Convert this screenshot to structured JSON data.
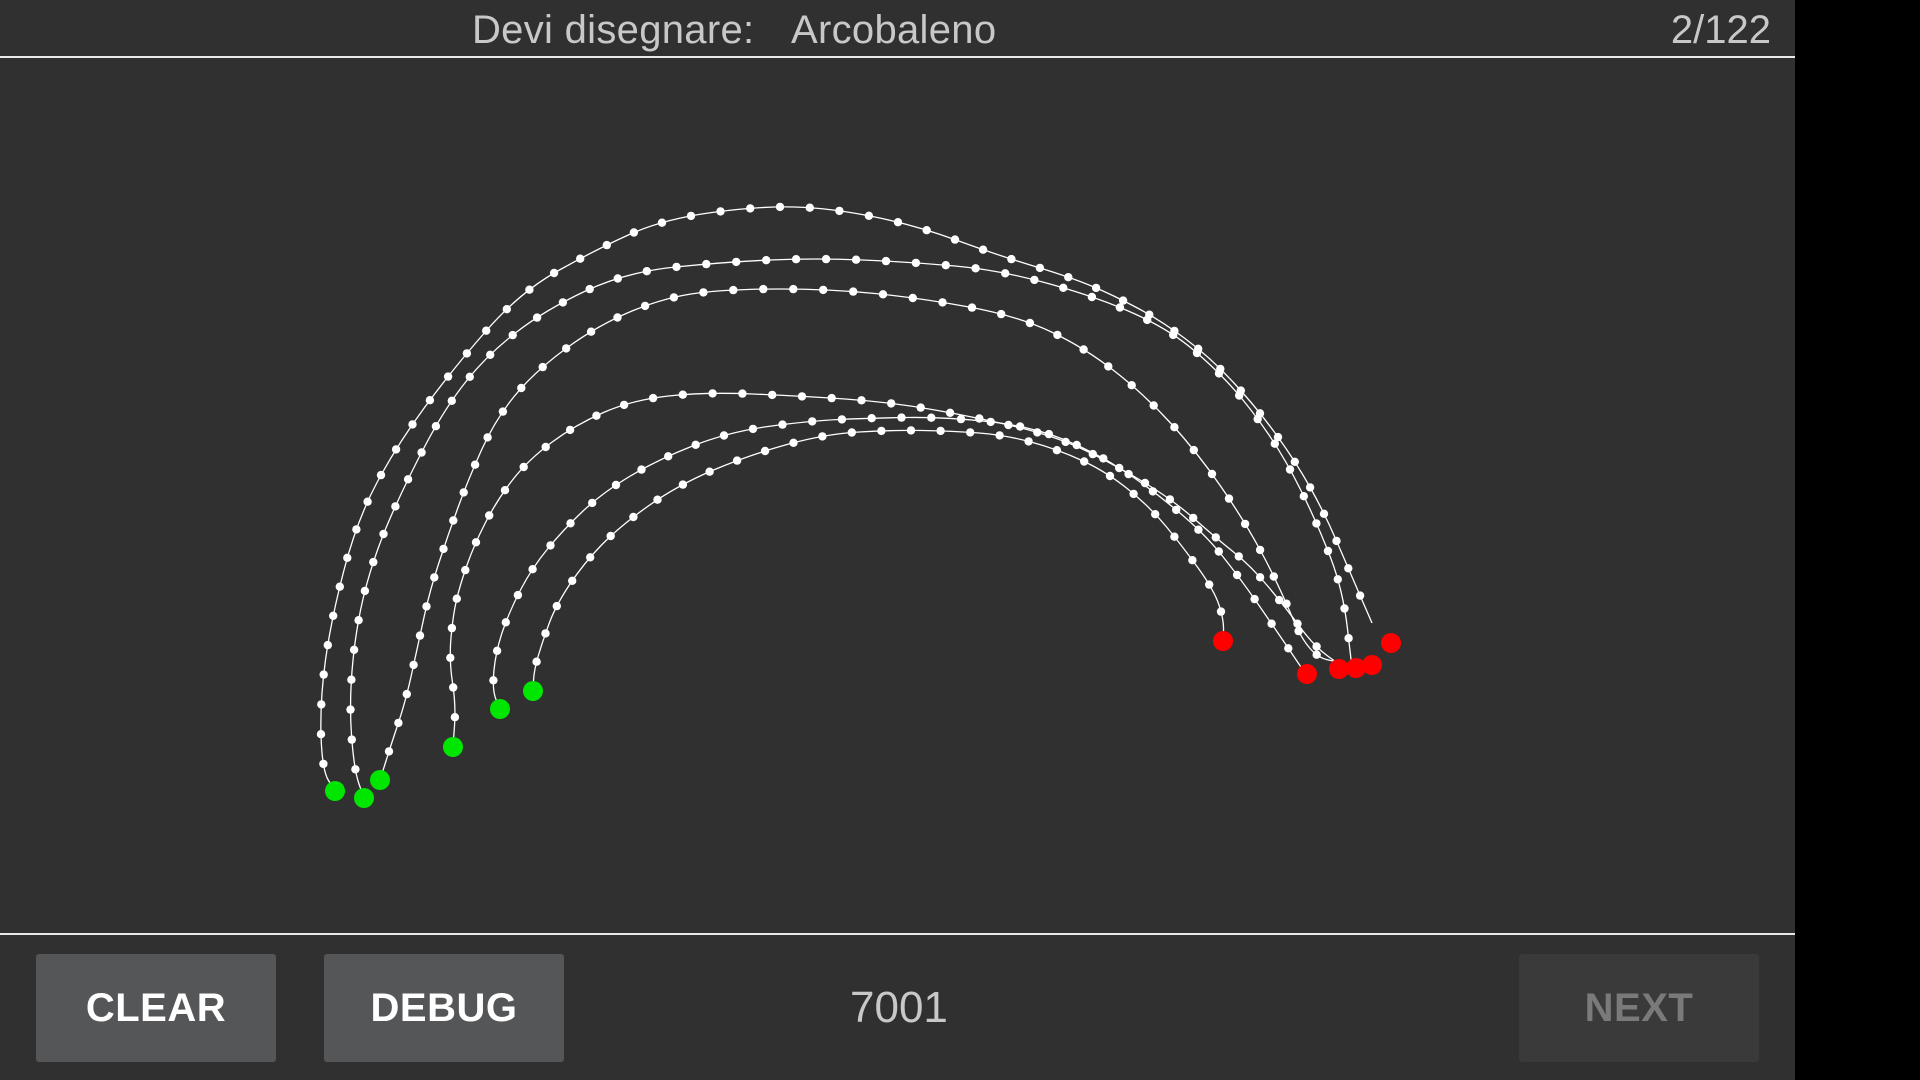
{
  "header": {
    "prompt_label": "Devi disegnare:",
    "prompt_word": "Arcobaleno",
    "progress": "2/122"
  },
  "footer": {
    "clear_label": "CLEAR",
    "debug_label": "DEBUG",
    "score": "7001",
    "next_label": "NEXT",
    "next_enabled": false
  },
  "colors": {
    "background": "#303030",
    "stroke": "#ffffff",
    "start_point": "#00e600",
    "end_point": "#ff0000"
  }
}
